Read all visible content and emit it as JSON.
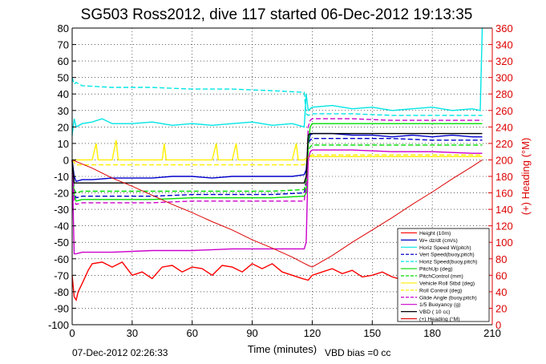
{
  "chart_data": {
    "type": "line",
    "title": "SG503 Ross2012, dive 117 started 06-Dec-2012 19:13:35",
    "xlabel": "Time (minutes)",
    "ylabel": "",
    "y2label": "(+) Heading (°M)",
    "xlim": [
      0,
      210
    ],
    "ylim": [
      -100,
      80
    ],
    "y2lim": [
      0,
      360
    ],
    "xticks": [
      "0",
      "30",
      "60",
      "90",
      "120",
      "150",
      "180",
      "210"
    ],
    "yticks": [
      "80",
      "70",
      "60",
      "50",
      "40",
      "30",
      "20",
      "10",
      "0",
      "-10",
      "-20",
      "-30",
      "-40",
      "-50",
      "-60",
      "-70",
      "-80",
      "-90",
      "-100"
    ],
    "y2ticks": [
      "360",
      "340",
      "320",
      "300",
      "280",
      "260",
      "240",
      "220",
      "200",
      "180",
      "160",
      "140",
      "120",
      "100",
      "80",
      "60",
      "40",
      "20",
      "0"
    ],
    "grid": true,
    "legend_position": "bottom-right",
    "footer_left": "07-Dec-2012 02:26:33",
    "footer_right": "VBD bias =0 cc",
    "colors": {
      "height": "#ff0000",
      "w": "#0000cc",
      "horiz_speed": "#00e5e5",
      "pitch": "#00dd00",
      "control": "#ffee00",
      "buoyancy": "#cc00cc",
      "vbd": "#000000",
      "heading": "#dd0000"
    },
    "series": [
      {
        "name": "Height (10m)",
        "color": "#ff0000",
        "style": "solid",
        "x": [
          0,
          1,
          2,
          3,
          5,
          8,
          10,
          15,
          20,
          25,
          30,
          35,
          40,
          45,
          50,
          55,
          60,
          65,
          70,
          75,
          80,
          85,
          90,
          95,
          100,
          105,
          110,
          115,
          118,
          120,
          125,
          130,
          135,
          140,
          145,
          150,
          155,
          160,
          163
        ],
        "y": [
          -70,
          -83,
          -85,
          -80,
          -75,
          -67,
          -63,
          -62,
          -65,
          -62,
          -70,
          -68,
          -72,
          -65,
          -64,
          -68,
          -65,
          -66,
          -70,
          -64,
          -65,
          -68,
          -63,
          -66,
          -63,
          -68,
          -70,
          -72,
          -73,
          -70,
          -68,
          -66,
          -69,
          -67,
          -71,
          -70,
          -68,
          -71,
          -72
        ]
      },
      {
        "name": "W= dz/dt (cm/s)",
        "color": "#0000cc",
        "style": "solid",
        "x": [
          0,
          1,
          2,
          5,
          10,
          20,
          30,
          40,
          50,
          60,
          70,
          80,
          90,
          100,
          110,
          116,
          117,
          118,
          119,
          120,
          130,
          140,
          150,
          160,
          170,
          180,
          190,
          200,
          205
        ],
        "y": [
          0,
          -10,
          -13,
          -12,
          -12,
          -11,
          -11,
          -11,
          -10,
          -10,
          -11,
          -10,
          -10,
          -10,
          -10,
          -9,
          -6,
          10,
          15,
          16,
          16,
          15,
          15,
          14,
          15,
          14,
          15,
          14,
          14
        ]
      },
      {
        "name": "Horiz Speed W(pitch)",
        "color": "#00e5e5",
        "style": "solid",
        "x": [
          0,
          1,
          2,
          5,
          10,
          15,
          20,
          30,
          40,
          50,
          60,
          70,
          80,
          90,
          100,
          110,
          116,
          117,
          118,
          120,
          130,
          140,
          150,
          160,
          170,
          180,
          190,
          200,
          204,
          205
        ],
        "y": [
          15,
          25,
          20,
          22,
          23,
          25,
          22,
          22,
          23,
          21,
          22,
          21,
          22,
          23,
          21,
          22,
          20,
          40,
          30,
          32,
          33,
          31,
          32,
          30,
          31,
          32,
          30,
          31,
          30,
          80
        ]
      },
      {
        "name": "Vert Speed(buoy,pitch)",
        "color": "#0000cc",
        "style": "dashed",
        "x": [
          0,
          1,
          2,
          5,
          20,
          40,
          60,
          80,
          100,
          116,
          117,
          118,
          119,
          120,
          140,
          160,
          180,
          200,
          205
        ],
        "y": [
          0,
          -20,
          -23,
          -22,
          -22,
          -22,
          -21,
          -21,
          -21,
          -20,
          -12,
          10,
          12,
          13,
          13,
          13,
          12,
          12,
          12
        ]
      },
      {
        "name": "Horiz Speed(buoy,pitch)",
        "color": "#00e5e5",
        "style": "dashed",
        "x": [
          0,
          1,
          2,
          5,
          20,
          40,
          60,
          80,
          100,
          116,
          117,
          118,
          120,
          140,
          160,
          180,
          200,
          205
        ],
        "y": [
          50,
          46,
          47,
          45,
          44,
          44,
          43,
          43,
          42,
          41,
          28,
          27,
          28,
          28,
          27,
          27,
          27,
          27
        ]
      },
      {
        "name": "PitchUp (deg)",
        "color": "#00dd00",
        "style": "solid",
        "x": [
          0,
          1,
          2,
          5,
          20,
          40,
          60,
          80,
          100,
          116,
          117,
          118,
          119,
          120,
          140,
          160,
          180,
          200,
          205
        ],
        "y": [
          0,
          -22,
          -25,
          -24,
          -24,
          -24,
          -23,
          -23,
          -23,
          -22,
          -20,
          10,
          20,
          22,
          22,
          22,
          22,
          22,
          22
        ]
      },
      {
        "name": "PitchControl (mm)",
        "color": "#00dd00",
        "style": "dashed",
        "x": [
          0,
          1,
          2,
          5,
          20,
          40,
          60,
          80,
          100,
          116,
          117,
          118,
          119,
          120,
          140,
          160,
          180,
          200,
          205
        ],
        "y": [
          0,
          -18,
          -20,
          -19,
          -19,
          -19,
          -19,
          -19,
          -19,
          -18,
          -12,
          5,
          8,
          9,
          9,
          9,
          9,
          9,
          9
        ]
      },
      {
        "name": "Vehicle Roll Stbd (deg)",
        "color": "#ffee00",
        "style": "solid",
        "x": [
          0,
          2,
          5,
          10,
          12,
          13,
          20,
          22,
          23,
          30,
          45,
          46,
          47,
          50,
          70,
          72,
          73,
          80,
          82,
          83,
          100,
          110,
          112,
          113,
          116,
          118,
          120,
          140,
          160,
          180,
          200,
          205
        ],
        "y": [
          0,
          0,
          0,
          0,
          10,
          0,
          0,
          12,
          0,
          0,
          0,
          10,
          0,
          0,
          0,
          10,
          0,
          0,
          10,
          0,
          0,
          0,
          10,
          0,
          0,
          2,
          2,
          2,
          2,
          2,
          2,
          2
        ]
      },
      {
        "name": "Roll Control (deg)",
        "color": "#ffee00",
        "style": "dashed",
        "x": [
          0,
          2,
          20,
          40,
          60,
          80,
          100,
          116,
          118,
          120,
          140,
          160,
          180,
          200,
          205
        ],
        "y": [
          0,
          -3,
          -3,
          -3,
          -3,
          -3,
          -3,
          -3,
          2,
          3,
          3,
          3,
          3,
          3,
          3
        ]
      },
      {
        "name": "Glide Angle (buoy,pitch)",
        "color": "#cc00cc",
        "style": "dashed",
        "x": [
          0,
          1,
          2,
          5,
          20,
          40,
          60,
          80,
          100,
          116,
          117,
          118,
          119,
          120,
          140,
          160,
          180,
          200,
          205
        ],
        "y": [
          0,
          -25,
          -27,
          -26,
          -26,
          -26,
          -25,
          -25,
          -25,
          -25,
          -15,
          20,
          24,
          25,
          25,
          24,
          24,
          24,
          24
        ]
      },
      {
        "name": "1/5 Buoyancy (g)",
        "color": "#cc00cc",
        "style": "solid",
        "x": [
          0,
          1,
          2,
          5,
          20,
          40,
          60,
          80,
          100,
          116,
          117,
          118,
          119,
          120,
          140,
          160,
          180,
          200,
          205
        ],
        "y": [
          0,
          -57,
          -57,
          -56,
          -56,
          -55,
          -55,
          -54,
          -54,
          -54,
          -50,
          0,
          5,
          6,
          6,
          5,
          5,
          4,
          4
        ]
      },
      {
        "name": "VBD ( 10 cc)",
        "color": "#000000",
        "style": "solid",
        "x": [
          0,
          1,
          2,
          5,
          20,
          40,
          60,
          80,
          100,
          116,
          117,
          118,
          119,
          120,
          140,
          160,
          180,
          200,
          205
        ],
        "y": [
          0,
          -14,
          -14,
          -14,
          -14,
          -14,
          -14,
          -14,
          -14,
          -14,
          -10,
          15,
          16,
          16,
          16,
          16,
          16,
          16,
          16
        ]
      },
      {
        "name": "(+) Heading (°M)",
        "color": "#dd0000",
        "style": "solid",
        "axis": "right",
        "x": [
          0,
          10,
          20,
          30,
          40,
          50,
          60,
          70,
          80,
          90,
          100,
          110,
          118,
          120,
          130,
          140,
          150,
          160,
          170,
          180,
          190,
          200,
          205
        ],
        "y": [
          200,
          190,
          178,
          168,
          157,
          146,
          136,
          125,
          115,
          103,
          93,
          82,
          72,
          70,
          84,
          100,
          115,
          130,
          146,
          161,
          177,
          192,
          200
        ]
      }
    ]
  }
}
